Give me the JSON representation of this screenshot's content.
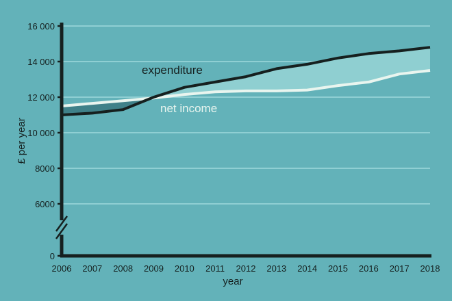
{
  "chart_data": {
    "type": "area",
    "title": "",
    "xlabel": "year",
    "ylabel": "£ per year",
    "x": [
      2006,
      2007,
      2008,
      2009,
      2010,
      2011,
      2012,
      2013,
      2014,
      2015,
      2016,
      2017,
      2018
    ],
    "xticks": [
      "2006",
      "2007",
      "2008",
      "2009",
      "2010",
      "2011",
      "2012",
      "2013",
      "2014",
      "2015",
      "2016",
      "2017",
      "2018"
    ],
    "yticks": [
      "0",
      "6000",
      "8000",
      "10 000",
      "12 000",
      "14 000",
      "16 000"
    ],
    "ytick_values": [
      0,
      6000,
      8000,
      10000,
      12000,
      14000,
      16000
    ],
    "ylim": [
      0,
      16000
    ],
    "y_axis_break": true,
    "grid": "horizontal",
    "series": [
      {
        "name": "expenditure",
        "color": "#16201f",
        "values": [
          11000,
          11100,
          11300,
          12000,
          12550,
          12850,
          13150,
          13600,
          13850,
          14200,
          14450,
          14600,
          14800
        ]
      },
      {
        "name": "net income",
        "color": "#e9f5ef",
        "values": [
          11500,
          11650,
          11800,
          11950,
          12150,
          12300,
          12350,
          12350,
          12400,
          12650,
          12850,
          13300,
          13500
        ]
      }
    ],
    "colors": {
      "background": "#63b2b9",
      "gap_deficit": "#8fcfd1",
      "gap_surplus": "#3f8189",
      "grid": "#8fcfd3"
    }
  }
}
